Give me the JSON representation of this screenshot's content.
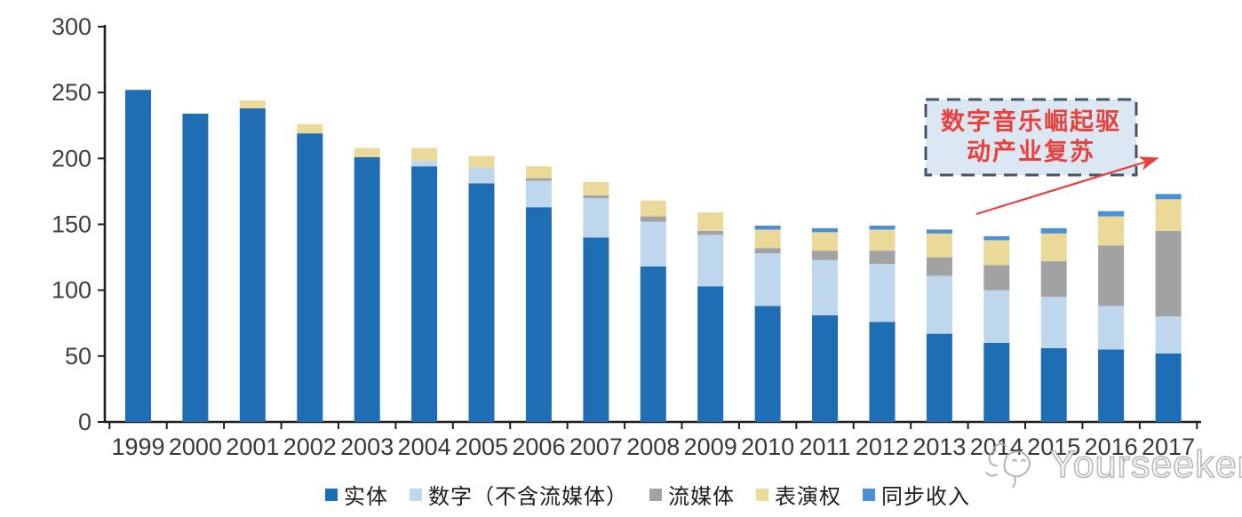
{
  "chart_data": {
    "type": "bar",
    "stacked": true,
    "title": "",
    "categories": [
      "1999",
      "2000",
      "2001",
      "2002",
      "2003",
      "2004",
      "2005",
      "2006",
      "2007",
      "2008",
      "2009",
      "2010",
      "2011",
      "2012",
      "2013",
      "2014",
      "2015",
      "2016",
      "2017"
    ],
    "series": [
      {
        "name": "实体",
        "color": "#1F6DB3",
        "values": [
          252,
          234,
          238,
          219,
          201,
          194,
          181,
          163,
          140,
          118,
          103,
          88,
          81,
          76,
          67,
          60,
          56,
          55,
          52
        ]
      },
      {
        "name": "数字（不含流媒体）",
        "color": "#BFD7ED",
        "values": [
          0,
          0,
          0,
          0,
          0,
          4,
          12,
          20,
          30,
          34,
          39,
          40,
          42,
          44,
          44,
          40,
          39,
          33,
          28
        ]
      },
      {
        "name": "流媒体",
        "color": "#A2A2A2",
        "values": [
          0,
          0,
          0,
          0,
          0,
          0,
          0,
          2,
          2,
          4,
          3,
          4,
          7,
          10,
          14,
          19,
          27,
          46,
          65
        ]
      },
      {
        "name": "表演权",
        "color": "#EBD99A",
        "values": [
          0,
          0,
          6,
          7,
          7,
          10,
          9,
          9,
          10,
          12,
          14,
          14,
          14,
          16,
          18,
          19,
          21,
          22,
          24
        ]
      },
      {
        "name": "同步收入",
        "color": "#4A90D4",
        "values": [
          0,
          0,
          0,
          0,
          0,
          0,
          0,
          0,
          0,
          0,
          0,
          3,
          3,
          3,
          3,
          3,
          4,
          4,
          4
        ]
      }
    ],
    "totals": [
      252,
      234,
      244,
      226,
      208,
      208,
      202,
      194,
      182,
      168,
      159,
      149,
      147,
      149,
      146,
      141,
      147,
      160,
      173
    ],
    "ylim": [
      0,
      300
    ],
    "ytick_step": 50,
    "yticks": [
      0,
      50,
      100,
      150,
      200,
      250,
      300
    ],
    "grid": false,
    "legend_position": "bottom",
    "xlabel": "",
    "ylabel": ""
  },
  "annotation": {
    "full_text": "数字音乐崛起驱动产业复苏",
    "line1": "数字音乐崛起驱",
    "line2": "动产业复苏"
  },
  "watermark": {
    "text": "Yourseeker"
  },
  "colors": {
    "annotation_text": "#E8413D",
    "annotation_border": "#44546A",
    "annotation_fill": "#DCE7F4",
    "arrow": "#E8413D",
    "axis": "#1F1F1F",
    "tick_label": "#3F3F3F",
    "watermark": "#B0B0B0"
  }
}
